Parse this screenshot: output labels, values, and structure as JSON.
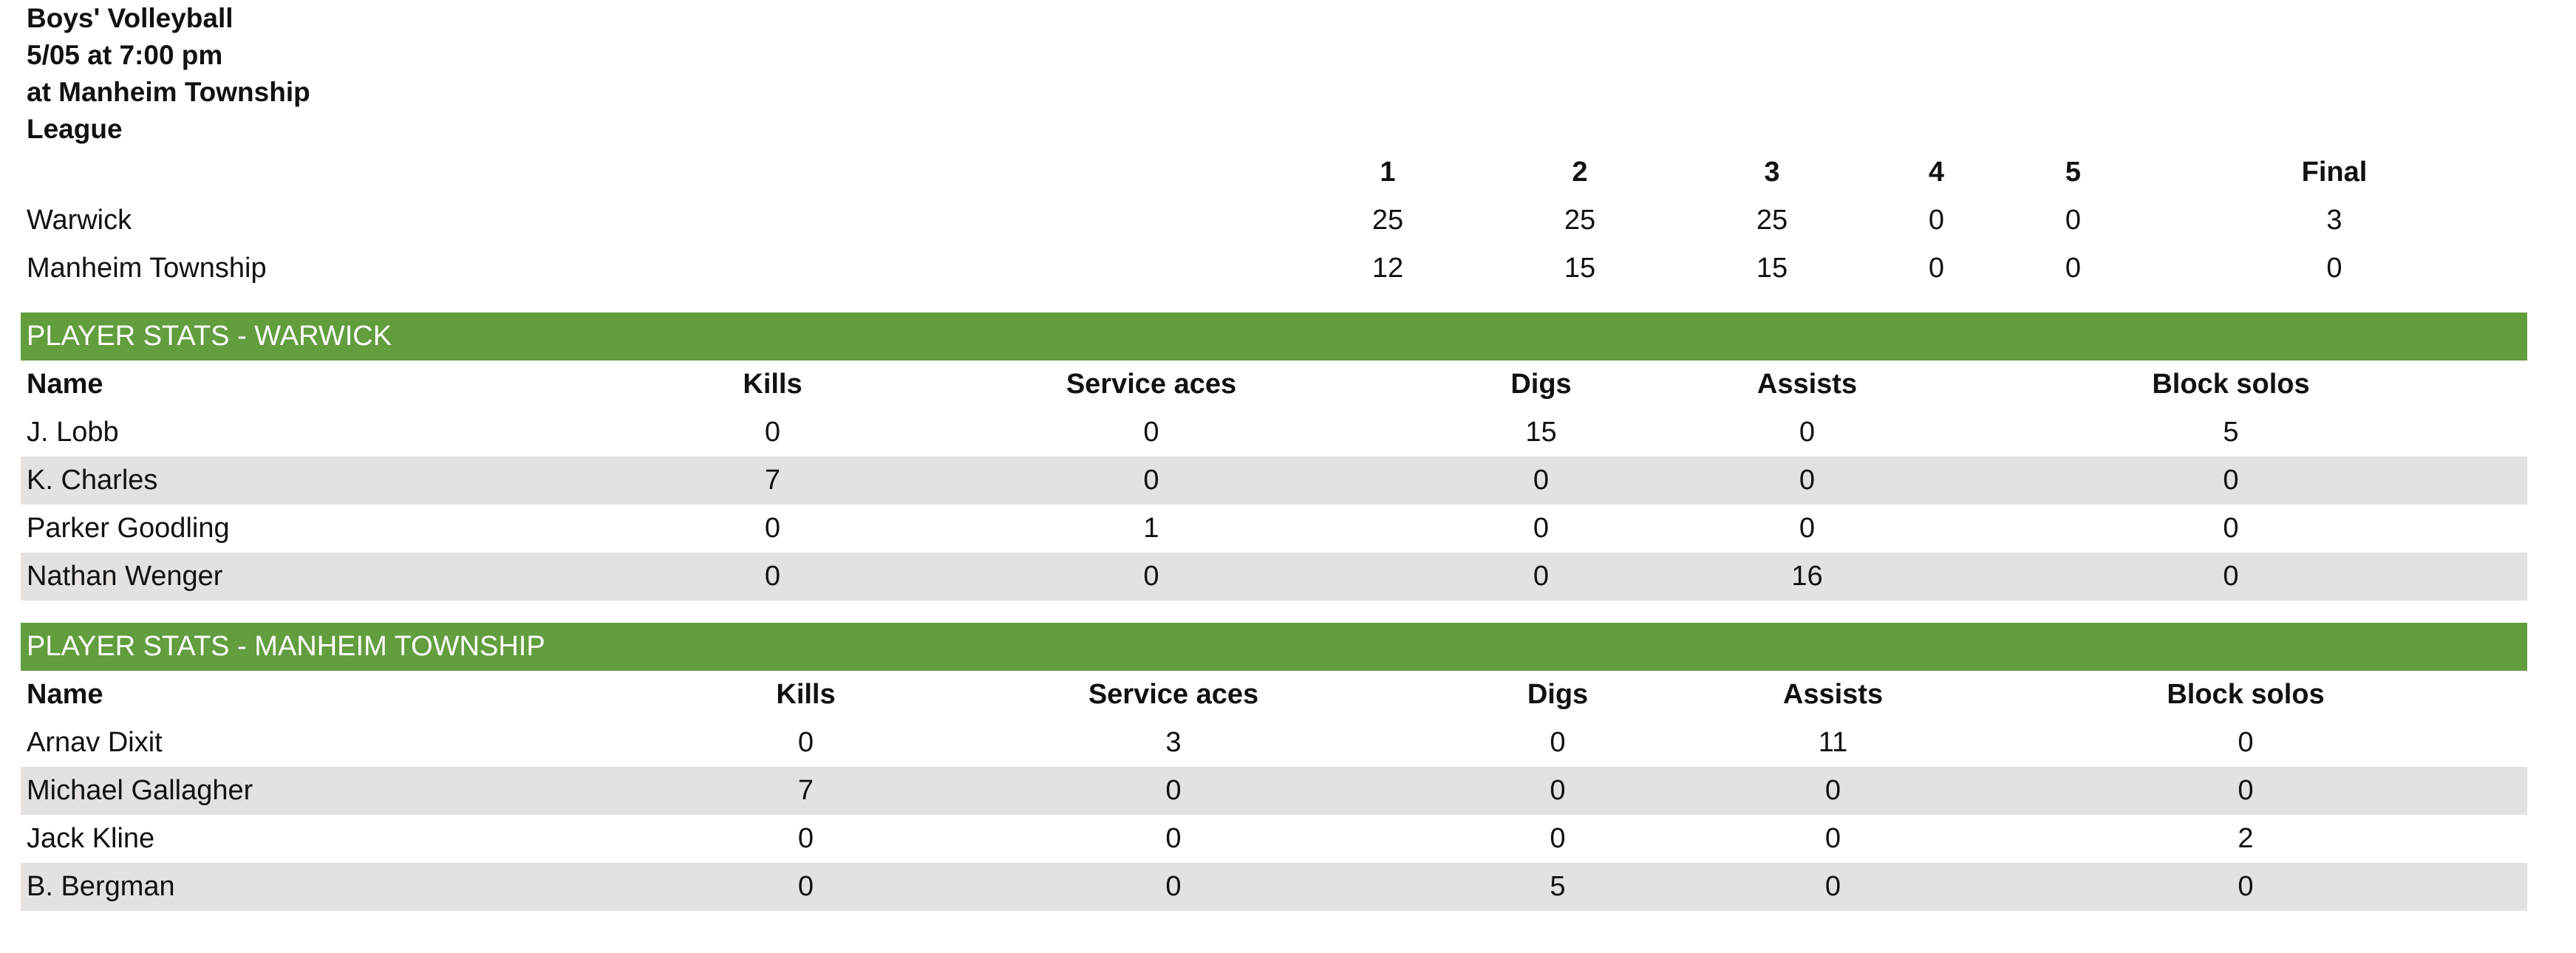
{
  "header": {
    "sport": "Boys' Volleyball",
    "datetime": "5/05 at 7:00 pm",
    "location": "at Manheim Township",
    "type": "League"
  },
  "score": {
    "columns": [
      "1",
      "2",
      "3",
      "4",
      "5",
      "Final"
    ],
    "rows": [
      {
        "team": "Warwick",
        "values": [
          "25",
          "25",
          "25",
          "0",
          "0",
          "3"
        ]
      },
      {
        "team": "Manheim Township",
        "values": [
          "12",
          "15",
          "15",
          "0",
          "0",
          "0"
        ]
      }
    ]
  },
  "warwick": {
    "section_title": "PLAYER STATS - WARWICK",
    "columns": [
      "Name",
      "Kills",
      "Service aces",
      "Digs",
      "Assists",
      "Block solos"
    ],
    "rows": [
      [
        "J. Lobb",
        "0",
        "0",
        "15",
        "0",
        "5"
      ],
      [
        "K. Charles",
        "7",
        "0",
        "0",
        "0",
        "0"
      ],
      [
        "Parker Goodling",
        "0",
        "1",
        "0",
        "0",
        "0"
      ],
      [
        "Nathan Wenger",
        "0",
        "0",
        "0",
        "16",
        "0"
      ]
    ]
  },
  "manheim": {
    "section_title": "PLAYER STATS - MANHEIM TOWNSHIP",
    "columns": [
      "Name",
      "Kills",
      "Service aces",
      "Digs",
      "Assists",
      "Block solos"
    ],
    "rows": [
      [
        "Arnav Dixit",
        "0",
        "3",
        "0",
        "11",
        "0"
      ],
      [
        "Michael Gallagher",
        "7",
        "0",
        "0",
        "0",
        "0"
      ],
      [
        "Jack Kline",
        "0",
        "0",
        "0",
        "0",
        "2"
      ],
      [
        "B. Bergman",
        "0",
        "0",
        "5",
        "0",
        "0"
      ]
    ]
  },
  "colors": {
    "section_bar": "#629d3e",
    "row_shade": "#e4e1df"
  }
}
